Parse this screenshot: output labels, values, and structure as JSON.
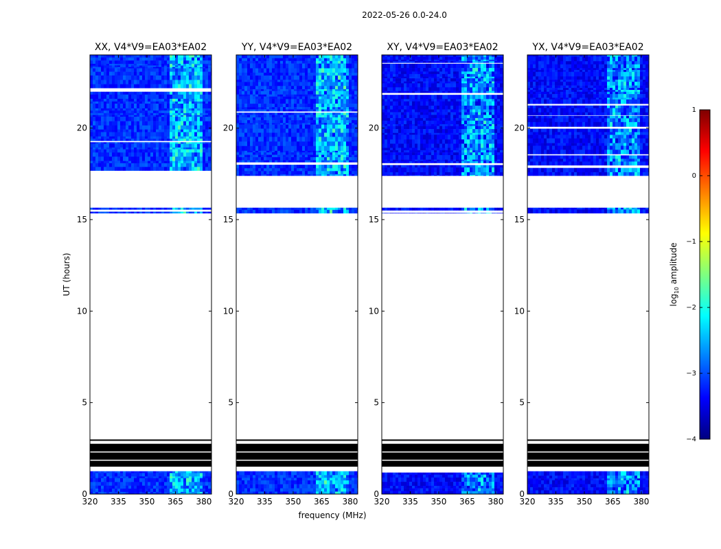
{
  "figure": {
    "suptitle": "2022-05-26 0.0-24.0",
    "ylabel": "UT (hours)",
    "xlabel": "frequency (MHz)"
  },
  "colorbar": {
    "label_prefix": "log",
    "label_sub": "10",
    "label_suffix": " amplitude",
    "ticks": [
      1,
      0,
      -1,
      -2,
      -3,
      -4
    ],
    "tick_labels": [
      "1",
      "0",
      "−1",
      "−2",
      "−3",
      "−4"
    ],
    "range": [
      -4,
      1
    ],
    "colormap": "jet",
    "colors": [
      "#00007f",
      "#0000ff",
      "#007fff",
      "#00ffff",
      "#7fff7f",
      "#ffff00",
      "#ff7f00",
      "#ff0000",
      "#7f0000"
    ]
  },
  "chart_data": [
    {
      "type": "heatmap",
      "title": "XX, V4*V9=EA03*EA02",
      "xlim": [
        320,
        384
      ],
      "ylim": [
        0,
        24
      ],
      "xticks": [
        320,
        335,
        350,
        365,
        380
      ],
      "yticks": [
        0,
        5,
        10,
        15,
        20
      ],
      "flagged_black_hours": [
        [
          1.5,
          2.75
        ]
      ],
      "data_hours": [
        [
          0,
          1.25
        ],
        [
          15.35,
          15.65
        ],
        [
          17.4,
          24
        ]
      ],
      "bright_band_mhz": [
        361,
        378
      ],
      "typical_log10_amplitude": -3
    },
    {
      "type": "heatmap",
      "title": "YY, V4*V9=EA03*EA02",
      "xlim": [
        320,
        384
      ],
      "ylim": [
        0,
        24
      ],
      "xticks": [
        320,
        335,
        350,
        365,
        380
      ],
      "yticks": [
        0,
        5,
        10,
        15,
        20
      ],
      "flagged_black_hours": [
        [
          1.5,
          2.75
        ]
      ],
      "data_hours": [
        [
          0,
          1.25
        ],
        [
          15.35,
          15.65
        ],
        [
          17.4,
          24
        ]
      ],
      "bright_band_mhz": [
        361,
        378
      ],
      "typical_log10_amplitude": -3
    },
    {
      "type": "heatmap",
      "title": "XY, V4*V9=EA03*EA02",
      "xlim": [
        320,
        384
      ],
      "ylim": [
        0,
        24
      ],
      "xticks": [
        320,
        335,
        350,
        365,
        380
      ],
      "yticks": [
        0,
        5,
        10,
        15,
        20
      ],
      "flagged_black_hours": [
        [
          1.5,
          2.75
        ]
      ],
      "data_hours": [
        [
          0,
          1.25
        ],
        [
          15.35,
          15.65
        ],
        [
          17.4,
          24
        ]
      ],
      "bright_band_mhz": [
        361,
        378
      ],
      "typical_log10_amplitude": -3.2
    },
    {
      "type": "heatmap",
      "title": "YX, V4*V9=EA03*EA02",
      "xlim": [
        320,
        384
      ],
      "ylim": [
        0,
        24
      ],
      "xticks": [
        320,
        335,
        350,
        365,
        380
      ],
      "yticks": [
        0,
        5,
        10,
        15,
        20
      ],
      "flagged_black_hours": [
        [
          1.5,
          2.75
        ]
      ],
      "data_hours": [
        [
          0,
          1.25
        ],
        [
          15.35,
          15.65
        ],
        [
          17.4,
          24
        ]
      ],
      "bright_band_mhz": [
        361,
        378
      ],
      "typical_log10_amplitude": -3.2
    }
  ]
}
